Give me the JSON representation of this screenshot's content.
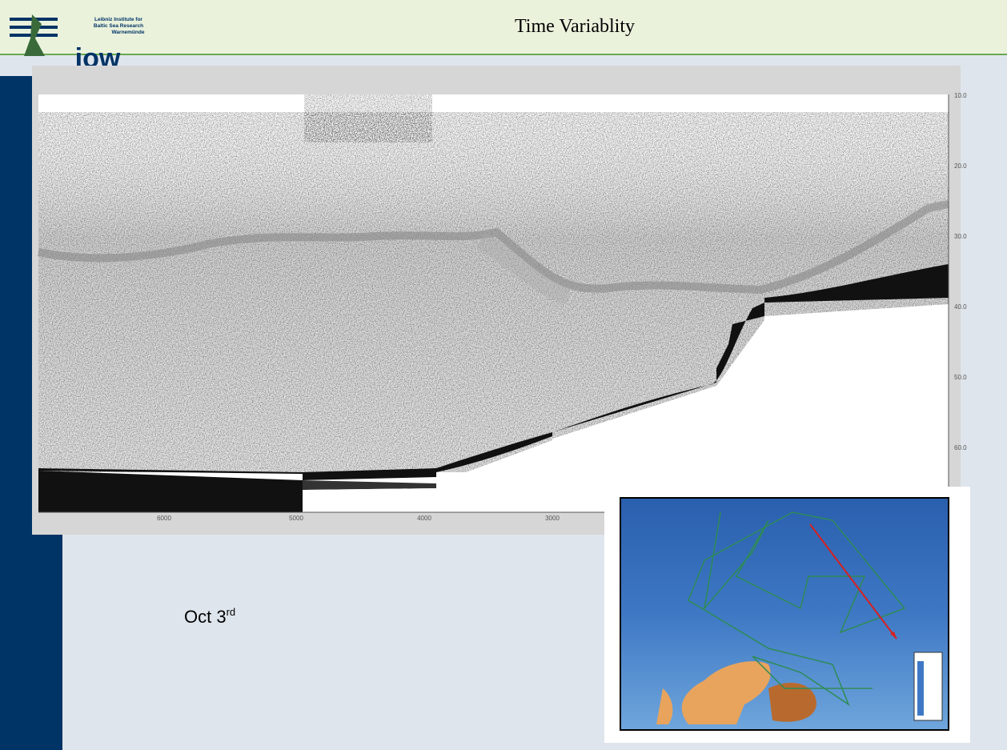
{
  "header": {
    "title": "Time Variablity",
    "logo": {
      "lines": [
        "Leibniz Institute for",
        "Baltic Sea Research",
        "Warnemünde"
      ],
      "mark": "iow"
    }
  },
  "echogram": {
    "x_labels": [
      "6000",
      "5000",
      "4000",
      "3000"
    ],
    "depth_labels": [
      "10.0",
      "20.0",
      "30.0",
      "40.0",
      "50.0",
      "60.0"
    ]
  },
  "caption": {
    "text": "Oct 3",
    "superscript": "rd"
  }
}
